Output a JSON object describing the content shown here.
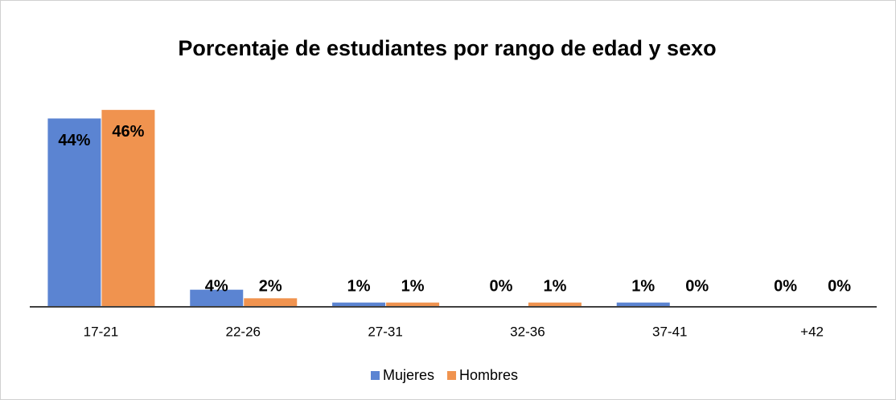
{
  "chart_data": {
    "type": "bar",
    "title": "Porcentaje de estudiantes por rango de edad y sexo",
    "categories": [
      "17-21",
      "22-26",
      "27-31",
      "32-36",
      "37-41",
      "+42"
    ],
    "series": [
      {
        "name": "Mujeres",
        "color": "#5b84d2",
        "values": [
          44,
          4,
          1,
          0,
          1,
          0
        ],
        "value_labels": [
          "44%",
          "4%",
          "1%",
          "0%",
          "1%",
          "0%"
        ]
      },
      {
        "name": "Hombres",
        "color": "#f0934f",
        "values": [
          46,
          2,
          1,
          1,
          0,
          0
        ],
        "value_labels": [
          "46%",
          "2%",
          "1%",
          "1%",
          "0%",
          "0%"
        ]
      }
    ],
    "legend": "bottom"
  }
}
